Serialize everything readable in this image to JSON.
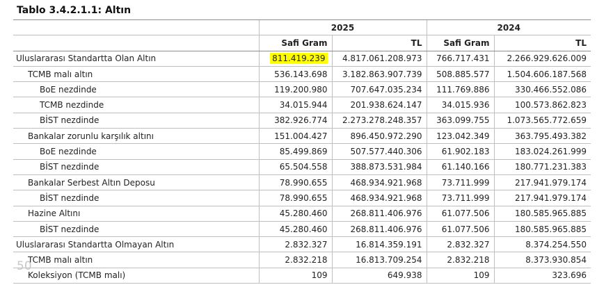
{
  "title": "Tablo 3.4.2.1.1: Altın",
  "page_number": "50",
  "highlight_color": "#ffff00",
  "header": {
    "years": [
      "2025",
      "2024"
    ],
    "sub": [
      "Safi Gram",
      "TL",
      "Safi Gram",
      "TL"
    ]
  },
  "rows": [
    {
      "label": "Uluslararası Standartta Olan Altın",
      "indent": 0,
      "highlight": true,
      "values": [
        "811.419.239",
        "4.817.061.208.973",
        "766.717.431",
        "2.266.929.626.009"
      ]
    },
    {
      "label": "TCMB malı altın",
      "indent": 1,
      "values": [
        "536.143.698",
        "3.182.863.907.739",
        "508.885.577",
        "1.504.606.187.568"
      ]
    },
    {
      "label": "BoE nezdinde",
      "indent": 2,
      "values": [
        "119.200.980",
        "707.647.035.234",
        "111.769.886",
        "330.466.552.086"
      ]
    },
    {
      "label": "TCMB nezdinde",
      "indent": 2,
      "values": [
        "34.015.944",
        "201.938.624.147",
        "34.015.936",
        "100.573.862.823"
      ]
    },
    {
      "label": "BİST nezdinde",
      "indent": 2,
      "values": [
        "382.926.774",
        "2.273.278.248.357",
        "363.099.755",
        "1.073.565.772.659"
      ]
    },
    {
      "label": "Bankalar zorunlu karşılık altını",
      "indent": 1,
      "values": [
        "151.004.427",
        "896.450.972.290",
        "123.042.349",
        "363.795.493.382"
      ]
    },
    {
      "label": "BoE nezdinde",
      "indent": 2,
      "values": [
        "85.499.869",
        "507.577.440.306",
        "61.902.183",
        "183.024.261.999"
      ]
    },
    {
      "label": "BİST nezdinde",
      "indent": 2,
      "values": [
        "65.504.558",
        "388.873.531.984",
        "61.140.166",
        "180.771.231.383"
      ]
    },
    {
      "label": "Bankalar Serbest Altın Deposu",
      "indent": 1,
      "values": [
        "78.990.655",
        "468.934.921.968",
        "73.711.999",
        "217.941.979.174"
      ]
    },
    {
      "label": "BİST nezdinde",
      "indent": 2,
      "values": [
        "78.990.655",
        "468.934.921.968",
        "73.711.999",
        "217.941.979.174"
      ]
    },
    {
      "label": "Hazine Altını",
      "indent": 1,
      "values": [
        "45.280.460",
        "268.811.406.976",
        "61.077.506",
        "180.585.965.885"
      ]
    },
    {
      "label": "BİST nezdinde",
      "indent": 2,
      "values": [
        "45.280.460",
        "268.811.406.976",
        "61.077.506",
        "180.585.965.885"
      ]
    },
    {
      "label": "Uluslararası Standartta Olmayan Altın",
      "indent": 0,
      "values": [
        "2.832.327",
        "16.814.359.191",
        "2.832.327",
        "8.374.254.550"
      ]
    },
    {
      "label": "TCMB malı altın",
      "indent": 1,
      "values": [
        "2.832.218",
        "16.813.709.254",
        "2.832.218",
        "8.373.930.854"
      ]
    },
    {
      "label": "Koleksiyon (TCMB malı)",
      "indent": 1,
      "values": [
        "109",
        "649.938",
        "109",
        "323.696"
      ]
    }
  ]
}
